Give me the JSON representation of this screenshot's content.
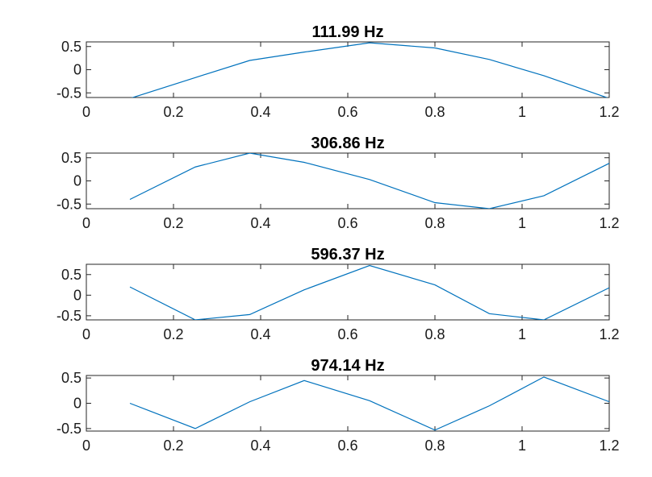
{
  "chart_data": [
    {
      "type": "line",
      "title": "111.99 Hz",
      "xlabel": "",
      "ylabel": "",
      "xlim": [
        0,
        1.2
      ],
      "ylim": [
        -0.6,
        0.6
      ],
      "xticks": [
        0,
        0.2,
        0.4,
        0.6,
        0.8,
        1,
        1.2
      ],
      "xtick_labels": [
        "0",
        "0.2",
        "0.4",
        "0.6",
        "0.8",
        "1",
        "1.2"
      ],
      "yticks": [
        -0.5,
        0,
        0.5
      ],
      "ytick_labels": [
        "-0.5",
        "0",
        "0.5"
      ],
      "grid": false,
      "color": "#0072BD",
      "x": [
        0.1,
        0.25,
        0.375,
        0.5,
        0.65,
        0.8,
        0.925,
        1.05,
        1.2
      ],
      "y": [
        -0.62,
        -0.17,
        0.2,
        0.38,
        0.58,
        0.47,
        0.22,
        -0.13,
        -0.62
      ]
    },
    {
      "type": "line",
      "title": "306.86 Hz",
      "xlabel": "",
      "ylabel": "",
      "xlim": [
        0,
        1.2
      ],
      "ylim": [
        -0.6,
        0.6
      ],
      "xticks": [
        0,
        0.2,
        0.4,
        0.6,
        0.8,
        1,
        1.2
      ],
      "xtick_labels": [
        "0",
        "0.2",
        "0.4",
        "0.6",
        "0.8",
        "1",
        "1.2"
      ],
      "yticks": [
        -0.5,
        0,
        0.5
      ],
      "ytick_labels": [
        "-0.5",
        "0",
        "0.5"
      ],
      "grid": false,
      "color": "#0072BD",
      "x": [
        0.1,
        0.25,
        0.375,
        0.5,
        0.65,
        0.8,
        0.925,
        1.05,
        1.2
      ],
      "y": [
        -0.4,
        0.3,
        0.6,
        0.4,
        0.03,
        -0.47,
        -0.6,
        -0.32,
        0.38
      ]
    },
    {
      "type": "line",
      "title": "596.37 Hz",
      "xlabel": "",
      "ylabel": "",
      "xlim": [
        0,
        1.2
      ],
      "ylim": [
        -0.6,
        0.75
      ],
      "xticks": [
        0,
        0.2,
        0.4,
        0.6,
        0.8,
        1,
        1.2
      ],
      "xtick_labels": [
        "0",
        "0.2",
        "0.4",
        "0.6",
        "0.8",
        "1",
        "1.2"
      ],
      "yticks": [
        -0.5,
        0,
        0.5
      ],
      "ytick_labels": [
        "-0.5",
        "0",
        "0.5"
      ],
      "grid": false,
      "color": "#0072BD",
      "x": [
        0.1,
        0.25,
        0.375,
        0.5,
        0.65,
        0.8,
        0.925,
        1.05,
        1.2
      ],
      "y": [
        0.2,
        -0.6,
        -0.47,
        0.13,
        0.72,
        0.25,
        -0.45,
        -0.6,
        0.18
      ]
    },
    {
      "type": "line",
      "title": "974.14 Hz",
      "xlabel": "",
      "ylabel": "",
      "xlim": [
        0,
        1.2
      ],
      "ylim": [
        -0.55,
        0.55
      ],
      "xticks": [
        0,
        0.2,
        0.4,
        0.6,
        0.8,
        1,
        1.2
      ],
      "xtick_labels": [
        "0",
        "0.2",
        "0.4",
        "0.6",
        "0.8",
        "1",
        "1.2"
      ],
      "yticks": [
        -0.5,
        0,
        0.5
      ],
      "ytick_labels": [
        "-0.5",
        "0",
        "0.5"
      ],
      "grid": false,
      "color": "#0072BD",
      "x": [
        0.1,
        0.25,
        0.375,
        0.5,
        0.65,
        0.8,
        0.925,
        1.05,
        1.2
      ],
      "y": [
        0.0,
        -0.5,
        0.03,
        0.45,
        0.05,
        -0.53,
        -0.05,
        0.52,
        0.03
      ]
    }
  ]
}
